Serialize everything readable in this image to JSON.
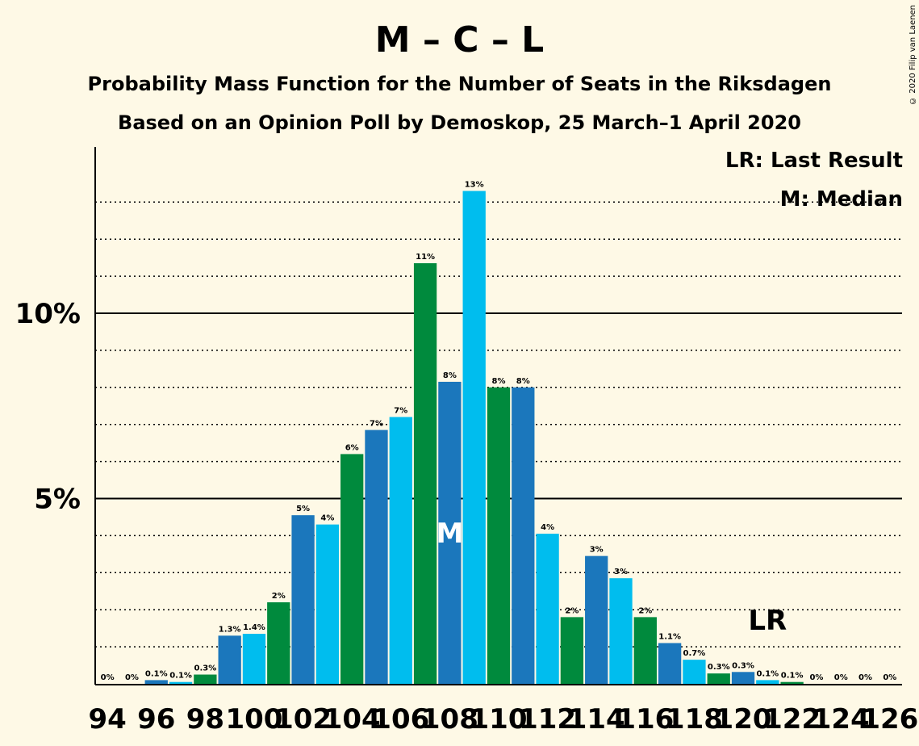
{
  "title": "M – C – L",
  "subtitle1": "Probability Mass Function for the Number of Seats in the Riksdagen",
  "subtitle2": "Based on an Opinion Poll by Demoskop, 25 March–1 April 2020",
  "copyright": "© 2020 Filip van Laenen",
  "legend": {
    "last_result": "LR: Last Result",
    "median": "M: Median"
  },
  "colors": {
    "background": "#fef9e6",
    "series": [
      "#1b77bc",
      "#00bdee",
      "#008a3d"
    ]
  },
  "chart_data": {
    "type": "bar",
    "x": [
      94,
      95,
      96,
      97,
      98,
      99,
      100,
      101,
      102,
      103,
      104,
      105,
      106,
      107,
      108,
      109,
      110,
      111,
      112,
      113,
      114,
      115,
      116,
      117,
      118,
      119,
      120,
      121,
      122,
      123,
      124,
      125,
      126
    ],
    "x_tick_labels": [
      "94",
      "96",
      "98",
      "100",
      "102",
      "104",
      "106",
      "108",
      "110",
      "112",
      "114",
      "116",
      "118",
      "120",
      "122",
      "124",
      "126"
    ],
    "values": [
      0,
      0,
      0.1,
      0.05,
      0.25,
      1.3,
      1.35,
      2.2,
      4.55,
      4.3,
      6.2,
      6.85,
      7.2,
      11.35,
      8.15,
      13.3,
      8.0,
      8.0,
      4.05,
      1.8,
      3.45,
      2.85,
      1.8,
      1.1,
      0.65,
      0.28,
      0.32,
      0.1,
      0.05,
      0,
      0,
      0,
      0
    ],
    "data_labels": [
      "0%",
      "0%",
      "0.1%",
      "0.1%",
      "0.3%",
      "1.3%",
      "1.4%",
      "2%",
      "5%",
      "4%",
      "6%",
      "7%",
      "7%",
      "11%",
      "8%",
      "13%",
      "8%",
      "8%",
      "4%",
      "2%",
      "3%",
      "3%",
      "2%",
      "1.1%",
      "0.7%",
      "0.3%",
      "0.3%",
      "0.1%",
      "0.1%",
      "0%",
      "0%",
      "0%",
      "0%"
    ],
    "y_ticks": [
      "5%",
      "10%"
    ],
    "y_tick_values": [
      5,
      10
    ],
    "ylim": [
      0,
      14.5
    ],
    "grid": "dotted every 1%, solid at 5% and 10%",
    "median_seat": 108,
    "median_marker": "M",
    "last_result_seat": 121,
    "last_result_marker": "LR"
  }
}
